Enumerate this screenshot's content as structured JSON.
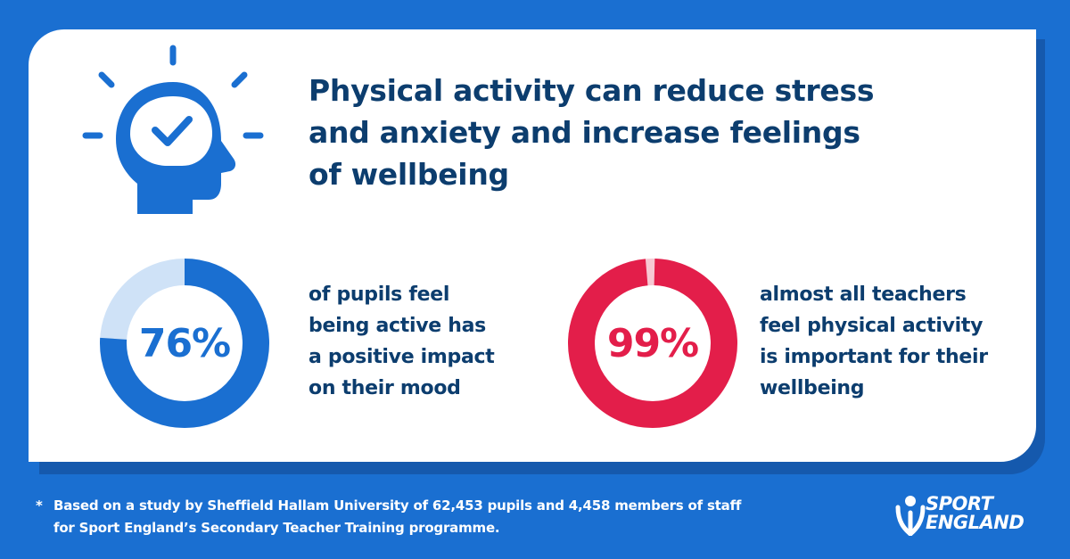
{
  "headline": {
    "line1": "Physical activity can reduce stress",
    "line2": "and anxiety and increase feelings",
    "line3": "of wellbeing"
  },
  "stats": [
    {
      "value": "76%",
      "fraction": 0.76,
      "color": "#1a6fd1",
      "track_color": "#cfe2f7",
      "lines": [
        "of pupils feel",
        "being active has",
        "a positive impact",
        "on their mood"
      ]
    },
    {
      "value": "99%",
      "fraction": 0.99,
      "color": "#e31e4a",
      "track_color": "#f7c8d3",
      "lines": [
        "almost all teachers",
        "feel physical activity",
        "is important for their",
        "wellbeing"
      ]
    }
  ],
  "footnote": {
    "star": "*",
    "line1": "Based on a study by Sheffield Hallam University of 62,453 pupils and 4,458 members of staff",
    "line2": "for Sport England’s Secondary Teacher Training programme."
  },
  "logo": {
    "line1": "SPORT",
    "line2": "ENGLAND"
  },
  "icons": {
    "head": "head-checkmark-icon",
    "logo": "sport-england-logo-icon"
  },
  "colors": {
    "background": "#1a6fd1",
    "headline": "#0c3d6e",
    "accent_red": "#e31e4a"
  }
}
